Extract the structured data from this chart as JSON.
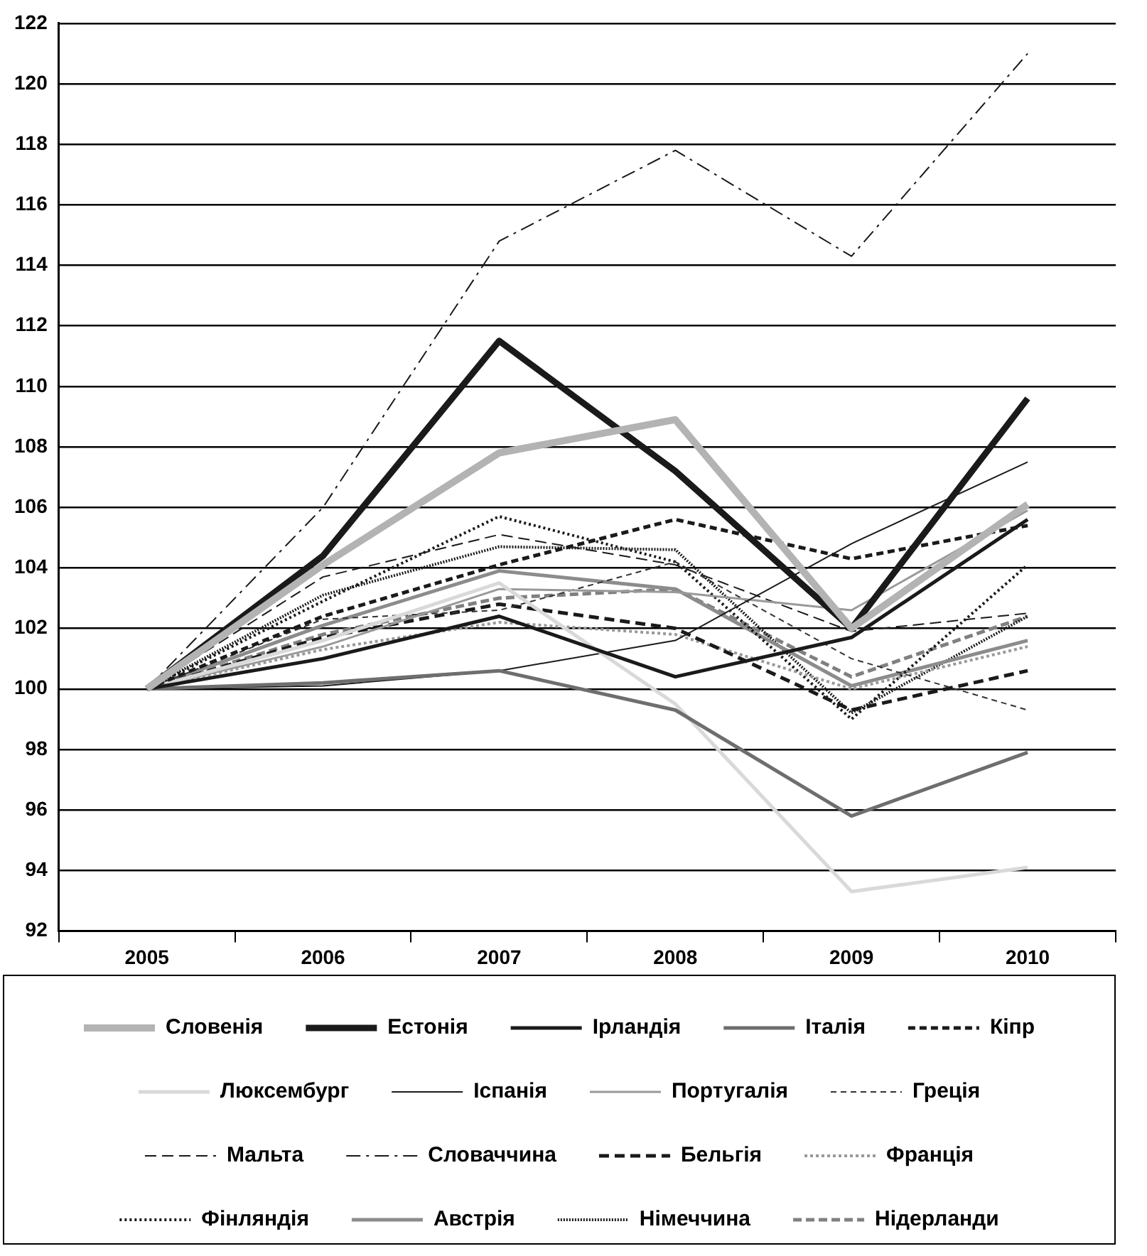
{
  "chart_data": {
    "type": "line",
    "categories": [
      "2005",
      "2006",
      "2007",
      "2008",
      "2009",
      "2010"
    ],
    "ylim": [
      92,
      122
    ],
    "yticks": [
      92,
      94,
      96,
      98,
      100,
      102,
      104,
      106,
      108,
      110,
      112,
      114,
      116,
      118,
      120,
      122
    ],
    "grid": "y",
    "legend": "bottom",
    "marker": "none",
    "series": [
      {
        "name": "Словенія",
        "color": "#b3b3b3",
        "line_style": "solid",
        "values": [
          100,
          104.1,
          107.8,
          108.9,
          102.0,
          106.1
        ]
      },
      {
        "name": "Естонія",
        "color": "#1a1a1a",
        "line_style": "solid",
        "values": [
          100,
          104.4,
          111.5,
          107.2,
          102.0,
          109.6
        ]
      },
      {
        "name": "Ірландія",
        "color": "#1a1a1a",
        "line_style": "solid",
        "values": [
          100,
          101.0,
          102.4,
          100.4,
          101.7,
          105.6
        ]
      },
      {
        "name": "Італія",
        "color": "#6e6e6e",
        "line_style": "solid",
        "values": [
          100,
          100.2,
          100.6,
          99.3,
          95.8,
          97.9
        ]
      },
      {
        "name": "Кіпр",
        "color": "#1a1a1a",
        "line_style": "dashed",
        "values": [
          100,
          102.4,
          104.1,
          105.6,
          104.3,
          105.4
        ]
      },
      {
        "name": "Люксембург",
        "color": "#d9d9d9",
        "line_style": "solid",
        "values": [
          100,
          101.6,
          103.5,
          99.5,
          93.3,
          94.1
        ]
      },
      {
        "name": "Іспанія",
        "color": "#1a1a1a",
        "line_style": "solid",
        "values": [
          100,
          100.1,
          100.6,
          101.6,
          104.8,
          107.5
        ]
      },
      {
        "name": "Португалія",
        "color": "#999999",
        "line_style": "solid",
        "values": [
          100,
          101.4,
          103.3,
          103.2,
          102.6,
          105.9
        ]
      },
      {
        "name": "Греція",
        "color": "#333333",
        "line_style": "dashed",
        "values": [
          100,
          102.3,
          102.6,
          104.2,
          101.0,
          99.3
        ]
      },
      {
        "name": "Мальта",
        "color": "#1a1a1a",
        "line_style": "dashed",
        "values": [
          100,
          103.7,
          105.1,
          104.1,
          101.9,
          102.5
        ]
      },
      {
        "name": "Словаччина",
        "color": "#1a1a1a",
        "line_style": "dashed",
        "values": [
          100,
          106.0,
          114.8,
          117.8,
          114.3,
          121.0
        ]
      },
      {
        "name": "Бельгія",
        "color": "#1a1a1a",
        "line_style": "dashed",
        "values": [
          100,
          101.7,
          102.8,
          102.0,
          99.3,
          100.6
        ]
      },
      {
        "name": "Франція",
        "color": "#999999",
        "line_style": "dotted",
        "values": [
          100,
          101.3,
          102.2,
          101.8,
          100.0,
          101.4
        ]
      },
      {
        "name": "Фінляндія",
        "color": "#1a1a1a",
        "line_style": "dotted",
        "values": [
          100,
          102.9,
          105.7,
          104.2,
          99.0,
          104.1
        ]
      },
      {
        "name": "Австрія",
        "color": "#8c8c8c",
        "line_style": "solid",
        "values": [
          100,
          102.1,
          103.9,
          103.3,
          100.1,
          101.6
        ]
      },
      {
        "name": "Німеччина",
        "color": "#1a1a1a",
        "line_style": "dotted",
        "values": [
          100,
          103.1,
          104.7,
          104.6,
          99.2,
          102.4
        ]
      },
      {
        "name": "Нідерланди",
        "color": "#808080",
        "line_style": "dashed",
        "values": [
          100,
          101.8,
          103.0,
          103.3,
          100.4,
          102.4
        ]
      }
    ]
  }
}
